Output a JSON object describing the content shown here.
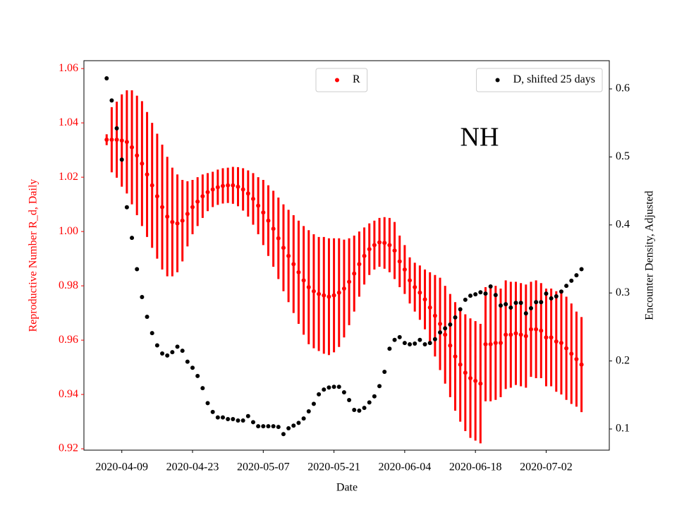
{
  "chart_data": {
    "type": "errorbar-dual",
    "annotation": "NH",
    "xlabel": "Date",
    "ylabel": "Reproductive Number R_d, Daily",
    "y2label": "Encounter Density, Adjusted",
    "x": [
      "2020-04-06",
      "2020-04-07",
      "2020-04-08",
      "2020-04-09",
      "2020-04-10",
      "2020-04-11",
      "2020-04-12",
      "2020-04-13",
      "2020-04-14",
      "2020-04-15",
      "2020-04-16",
      "2020-04-17",
      "2020-04-18",
      "2020-04-19",
      "2020-04-20",
      "2020-04-21",
      "2020-04-22",
      "2020-04-23",
      "2020-04-24",
      "2020-04-25",
      "2020-04-26",
      "2020-04-27",
      "2020-04-28",
      "2020-04-29",
      "2020-04-30",
      "2020-05-01",
      "2020-05-02",
      "2020-05-03",
      "2020-05-04",
      "2020-05-05",
      "2020-05-06",
      "2020-05-07",
      "2020-05-08",
      "2020-05-09",
      "2020-05-10",
      "2020-05-11",
      "2020-05-12",
      "2020-05-13",
      "2020-05-14",
      "2020-05-15",
      "2020-05-16",
      "2020-05-17",
      "2020-05-18",
      "2020-05-19",
      "2020-05-20",
      "2020-05-21",
      "2020-05-22",
      "2020-05-23",
      "2020-05-24",
      "2020-05-25",
      "2020-05-26",
      "2020-05-27",
      "2020-05-28",
      "2020-05-29",
      "2020-05-30",
      "2020-05-31",
      "2020-06-01",
      "2020-06-02",
      "2020-06-03",
      "2020-06-04",
      "2020-06-05",
      "2020-06-06",
      "2020-06-07",
      "2020-06-08",
      "2020-06-09",
      "2020-06-10",
      "2020-06-11",
      "2020-06-12",
      "2020-06-13",
      "2020-06-14",
      "2020-06-15",
      "2020-06-16",
      "2020-06-17",
      "2020-06-18",
      "2020-06-19",
      "2020-06-20",
      "2020-06-21",
      "2020-06-22",
      "2020-06-23",
      "2020-06-24",
      "2020-06-25",
      "2020-06-26",
      "2020-06-27",
      "2020-06-28",
      "2020-06-29",
      "2020-06-30",
      "2020-07-01",
      "2020-07-02",
      "2020-07-03",
      "2020-07-04",
      "2020-07-05",
      "2020-07-06",
      "2020-07-07",
      "2020-07-08",
      "2020-07-09"
    ],
    "xlim": [
      "2020-04-01T12:00",
      "2020-07-14T12:00"
    ],
    "xticks": [
      "2020-04-09",
      "2020-04-23",
      "2020-05-07",
      "2020-05-21",
      "2020-06-04",
      "2020-06-18",
      "2020-07-02"
    ],
    "ylim": [
      0.9195,
      1.0629
    ],
    "yticks": [
      0.92,
      0.94,
      0.96,
      0.98,
      {
        "value": 1,
        "label": "1.00"
      },
      1.02,
      1.04,
      1.06
    ],
    "y2lim": [
      0.0689,
      0.6415
    ],
    "y2ticks": [
      0.1,
      0.2,
      0.3,
      0.4,
      0.5,
      0.6
    ],
    "series": [
      {
        "name": "R",
        "color": "#ff0000",
        "legend": "upper center",
        "values": [
          1.0338,
          1.0338,
          1.0338,
          1.0335,
          1.033,
          1.031,
          1.028,
          1.025,
          1.021,
          1.017,
          1.013,
          1.009,
          1.0055,
          1.0035,
          1.003,
          1.004,
          1.0065,
          1.009,
          1.011,
          1.013,
          1.0145,
          1.0155,
          1.0163,
          1.0168,
          1.017,
          1.017,
          1.0165,
          1.0155,
          1.014,
          1.012,
          1.0095,
          1.007,
          1.004,
          1.001,
          0.9975,
          0.994,
          0.991,
          0.988,
          0.985,
          0.982,
          0.9795,
          0.978,
          0.977,
          0.9765,
          0.976,
          0.9765,
          0.9775,
          0.979,
          0.9815,
          0.9845,
          0.988,
          0.991,
          0.9935,
          0.995,
          0.996,
          0.9958,
          0.995,
          0.993,
          0.989,
          0.986,
          0.982,
          0.9795,
          0.9775,
          0.975,
          0.972,
          0.969,
          0.966,
          0.962,
          0.958,
          0.954,
          0.951,
          0.948,
          0.946,
          0.945,
          0.944,
          0.9585,
          0.9585,
          0.959,
          0.959,
          0.962,
          0.962,
          0.9625,
          0.962,
          0.9615,
          0.964,
          0.964,
          0.9635,
          0.961,
          0.961,
          0.9595,
          0.959,
          0.957,
          0.955,
          0.953,
          0.951
        ],
        "errors": [
          0.002,
          0.012,
          0.014,
          0.017,
          0.019,
          0.021,
          0.022,
          0.023,
          0.023,
          0.023,
          0.023,
          0.023,
          0.022,
          0.02,
          0.018,
          0.015,
          0.012,
          0.01,
          0.009,
          0.008,
          0.007,
          0.0065,
          0.0065,
          0.0065,
          0.0065,
          0.0068,
          0.0072,
          0.0078,
          0.0085,
          0.0095,
          0.0105,
          0.012,
          0.013,
          0.014,
          0.015,
          0.016,
          0.017,
          0.018,
          0.019,
          0.02,
          0.021,
          0.021,
          0.021,
          0.0215,
          0.0215,
          0.021,
          0.02,
          0.018,
          0.016,
          0.014,
          0.012,
          0.0105,
          0.0095,
          0.009,
          0.009,
          0.0095,
          0.01,
          0.0105,
          0.0095,
          0.009,
          0.0085,
          0.009,
          0.01,
          0.011,
          0.013,
          0.015,
          0.017,
          0.018,
          0.019,
          0.02,
          0.021,
          0.0215,
          0.022,
          0.022,
          0.022,
          0.021,
          0.021,
          0.021,
          0.02,
          0.02,
          0.0195,
          0.019,
          0.019,
          0.019,
          0.0175,
          0.018,
          0.0175,
          0.018,
          0.018,
          0.0185,
          0.019,
          0.019,
          0.0185,
          0.0175,
          0.0175
        ]
      },
      {
        "name": "D, shifted 25 days",
        "color": "#000000",
        "axis": "y2",
        "legend": "upper right",
        "values": [
          0.6156,
          0.583,
          0.542,
          0.496,
          0.426,
          0.381,
          0.335,
          0.294,
          0.265,
          0.241,
          0.223,
          0.211,
          0.208,
          0.213,
          0.221,
          0.215,
          0.199,
          0.19,
          0.178,
          0.16,
          0.138,
          0.125,
          0.117,
          0.117,
          0.1145,
          0.1145,
          0.1125,
          0.1125,
          0.119,
          0.11,
          0.104,
          0.104,
          0.104,
          0.104,
          0.103,
          0.0925,
          0.101,
          0.105,
          0.109,
          0.1155,
          0.126,
          0.137,
          0.151,
          0.158,
          0.161,
          0.162,
          0.162,
          0.154,
          0.1425,
          0.128,
          0.127,
          0.131,
          0.139,
          0.148,
          0.163,
          0.184,
          0.218,
          0.231,
          0.235,
          0.2265,
          0.2245,
          0.2255,
          0.231,
          0.2245,
          0.2265,
          0.232,
          0.242,
          0.248,
          0.2535,
          0.264,
          0.276,
          0.29,
          0.296,
          0.298,
          0.301,
          0.299,
          0.3095,
          0.297,
          0.2815,
          0.2835,
          0.2785,
          0.2855,
          0.2855,
          0.27,
          0.2775,
          0.2865,
          0.2865,
          0.299,
          0.292,
          0.295,
          0.302,
          0.3105,
          0.318,
          0.326,
          0.335
        ]
      }
    ]
  }
}
